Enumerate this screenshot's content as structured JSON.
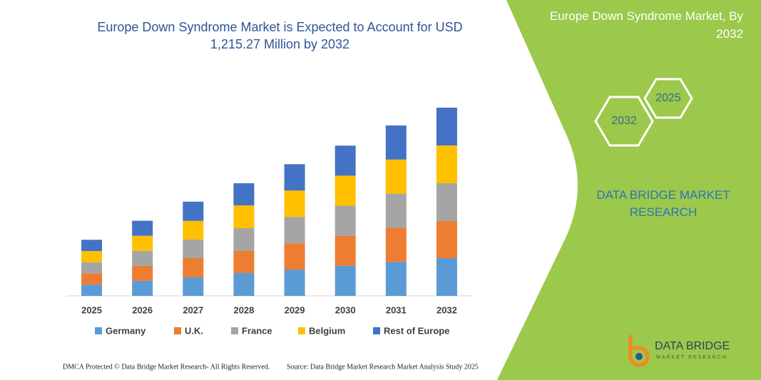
{
  "chart_data": {
    "type": "stacked_bar",
    "title": "Europe Down Syndrome Market is Expected to Account for USD 1,215.27 Million by 2032",
    "categories": [
      "2025",
      "2026",
      "2027",
      "2028",
      "2029",
      "2030",
      "2031",
      "2032"
    ],
    "series": [
      {
        "name": "Germany",
        "color": "#5b9bd5",
        "values": [
          73,
          97,
          120,
          147,
          170,
          194,
          220,
          244
        ]
      },
      {
        "name": "U.K.",
        "color": "#ed7d31",
        "values": [
          73,
          97,
          124,
          143,
          170,
          194,
          220,
          239
        ]
      },
      {
        "name": "France",
        "color": "#a5a5a5",
        "values": [
          70,
          97,
          120,
          147,
          170,
          194,
          220,
          244
        ]
      },
      {
        "name": "Belgium",
        "color": "#ffc000",
        "values": [
          73,
          97,
          120,
          147,
          170,
          194,
          220,
          244
        ]
      },
      {
        "name": "Rest of Europe",
        "color": "#4472c4",
        "values": [
          73,
          97,
          124,
          143,
          170,
          194,
          220,
          244
        ]
      }
    ],
    "ylim": [
      0,
      1215
    ]
  },
  "panel": {
    "title": "Europe Down Syndrome Market, By 2032",
    "hex_back": "2032",
    "hex_front": "2025",
    "brand": "DATA BRIDGE MARKET RESEARCH"
  },
  "footer": {
    "copyright": "DMCA Protected © Data Bridge Market Research- All Rights Reserved.",
    "source": "Source: Data Bridge Market Research Market Analysis Study 2025"
  },
  "logo": {
    "name": "DATA BRIDGE",
    "tagline": "MARKET RESEARCH"
  }
}
